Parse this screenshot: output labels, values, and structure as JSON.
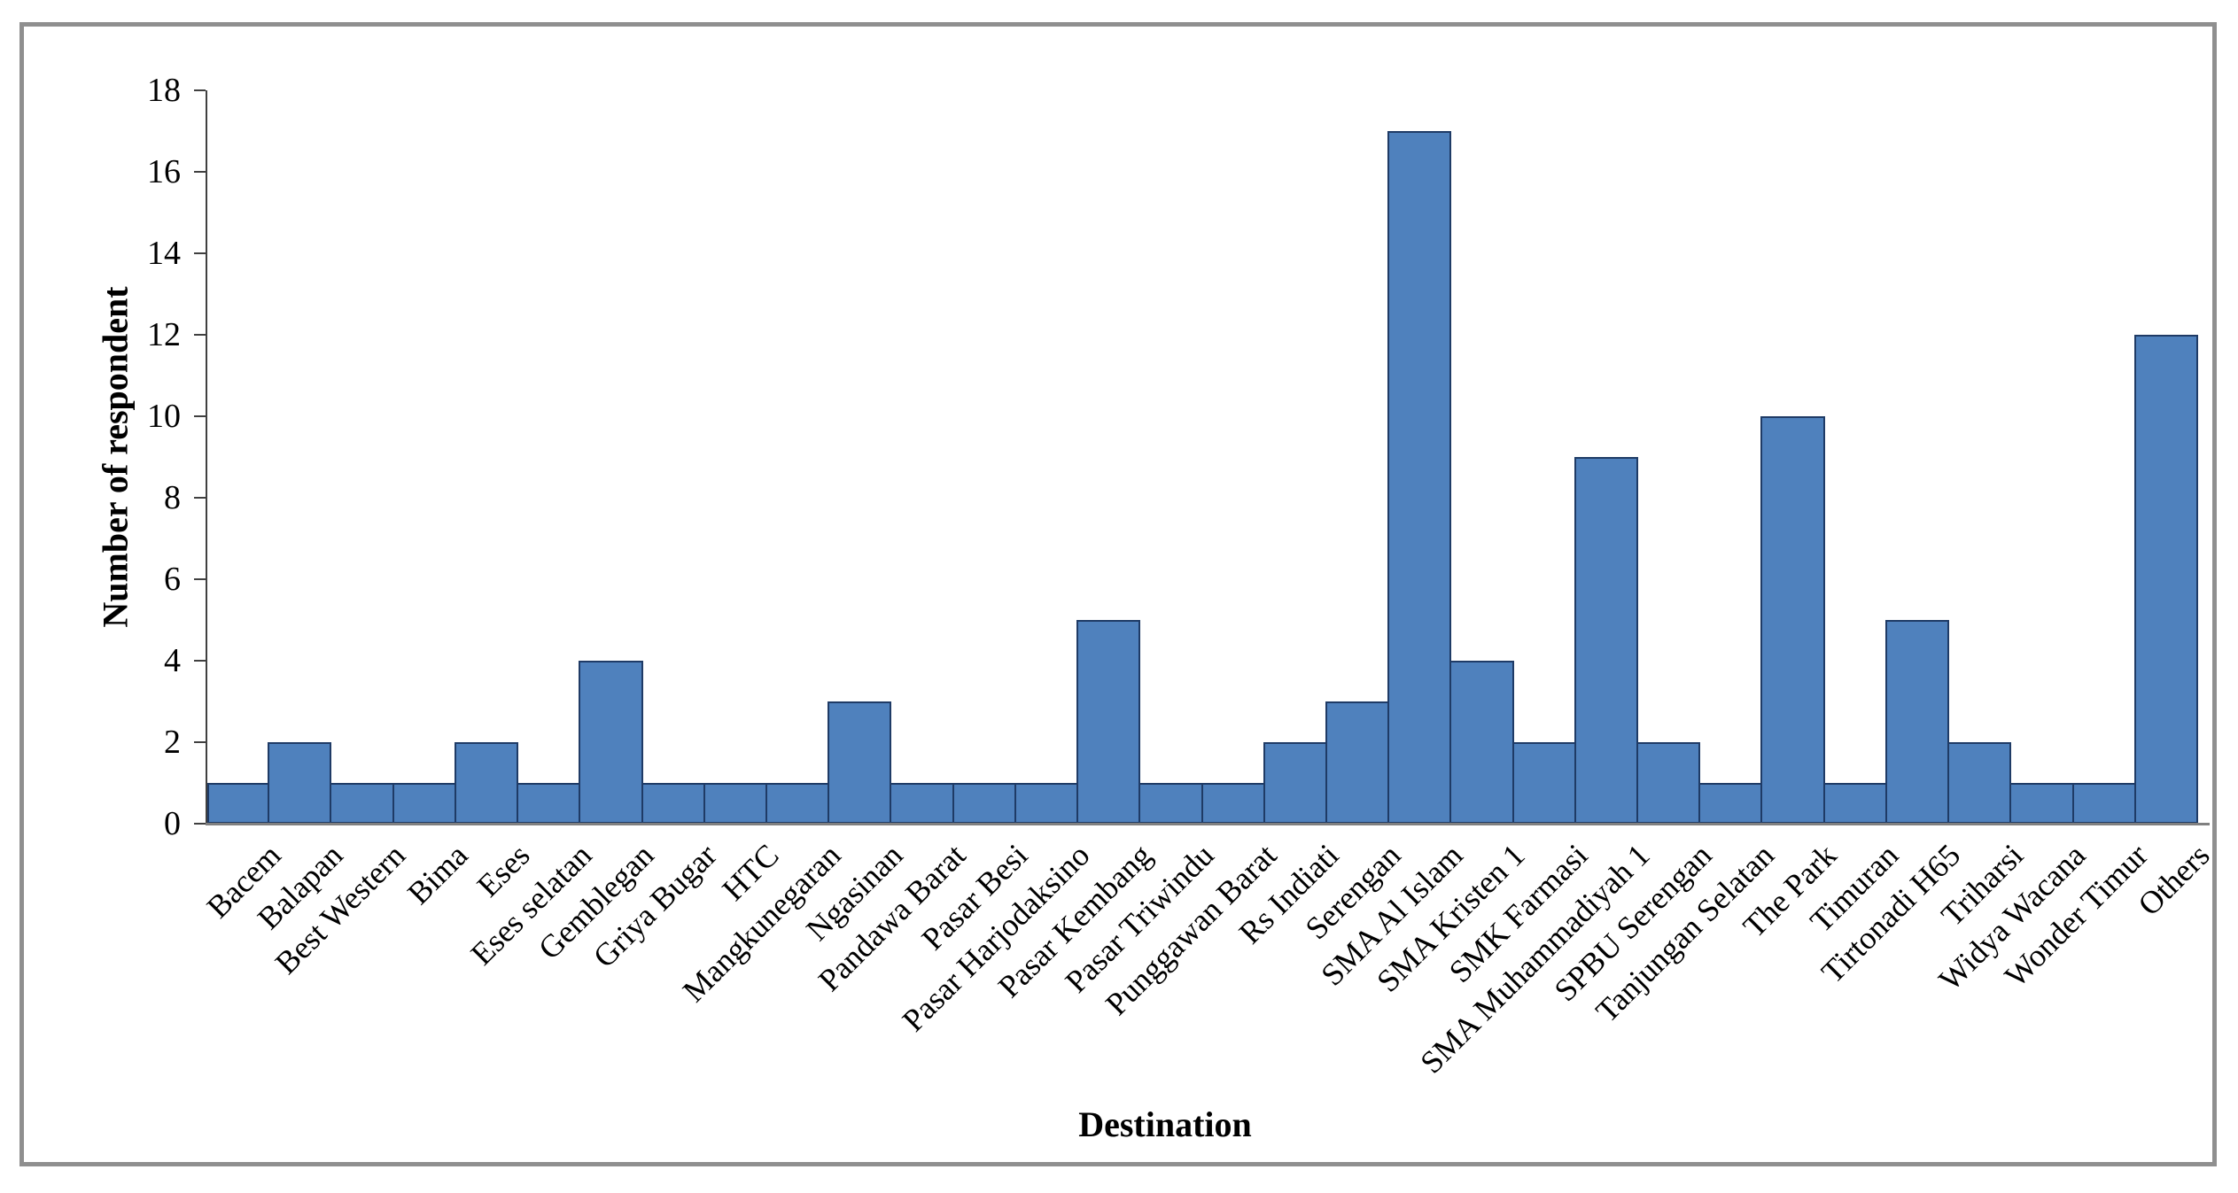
{
  "chart_data": {
    "type": "bar",
    "title": "",
    "xlabel": "Destination",
    "ylabel": "Number of respondent",
    "categories": [
      "Bacem",
      "Balapan",
      "Best Western",
      "Bima",
      "Eses",
      "Eses selatan",
      "Gemblegan",
      "Griya Bugar",
      "HTC",
      "Mangkunegaran",
      "Ngasinan",
      "Pandawa Barat",
      "Pasar Besi",
      "Pasar Harjodaksino",
      "Pasar Kembang",
      "Pasar Triwindu",
      "Punggawan Barat",
      "Rs Indiati",
      "Serengan",
      "SMA Al Islam",
      "SMA Kristen 1",
      "SMK Farmasi",
      "SMA Muhammadiyah 1",
      "SPBU Serengan",
      "Tanjungan Selatan",
      "The Park",
      "Timuran",
      "Tirtonadi H65",
      "Triharsi",
      "Widya Wacana",
      "Wonder Timur",
      "Others"
    ],
    "values": [
      1,
      2,
      1,
      1,
      2,
      1,
      4,
      1,
      1,
      1,
      3,
      1,
      1,
      1,
      5,
      1,
      1,
      2,
      3,
      17,
      4,
      2,
      9,
      2,
      1,
      10,
      1,
      5,
      2,
      1,
      1,
      12
    ],
    "ylim": [
      0,
      18
    ],
    "yticks": [
      0,
      2,
      4,
      6,
      8,
      10,
      12,
      14,
      16,
      18
    ],
    "grid": false,
    "legend": false,
    "bar_fill": "#4F81BD",
    "bar_border": "#1F3B66",
    "axis_color": "#404040",
    "baseline_color": "#808080",
    "frame_border_color": "#8F8F8F",
    "background": "#FFFFFF"
  }
}
